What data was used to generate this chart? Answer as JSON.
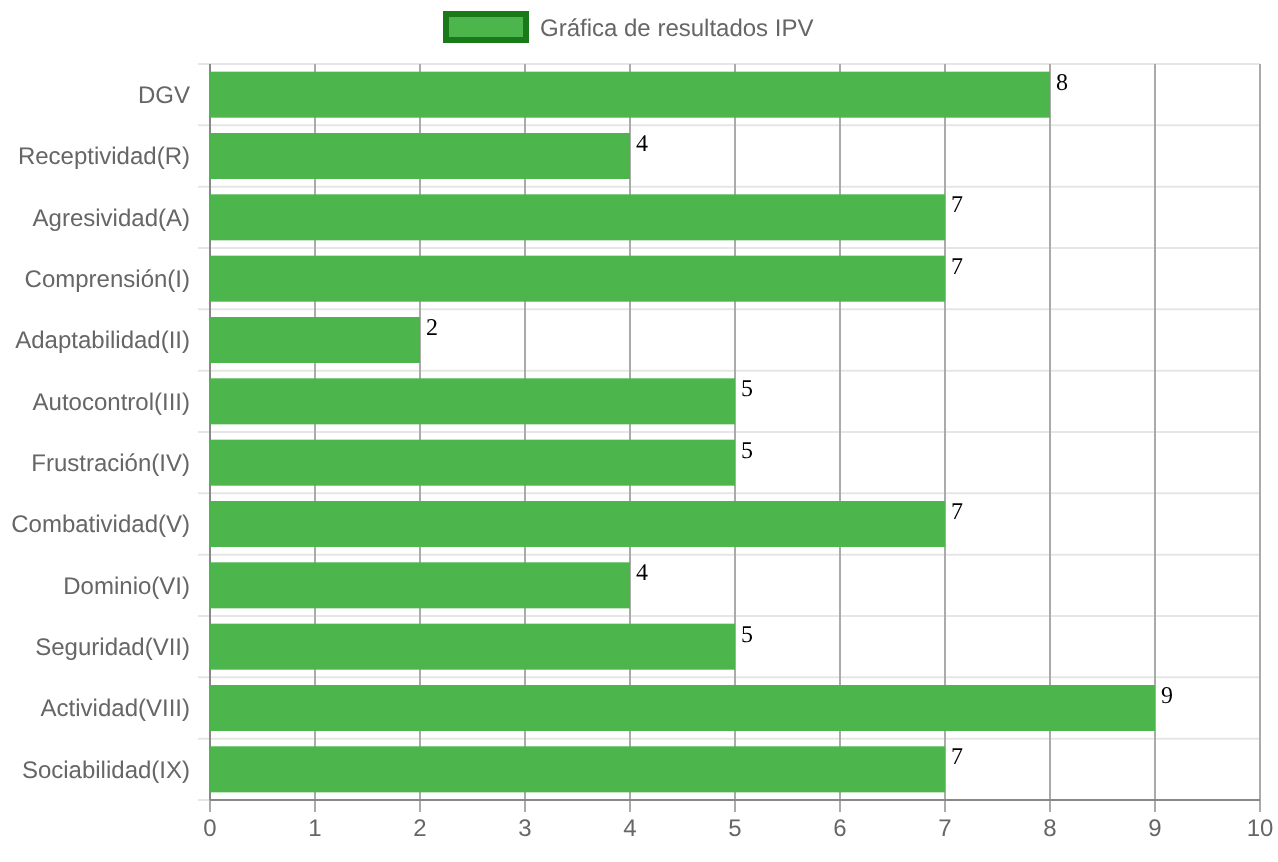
{
  "chart_data": {
    "type": "bar",
    "orientation": "horizontal",
    "categories": [
      "DGV",
      "Receptividad(R)",
      "Agresividad(A)",
      "Comprensión(I)",
      "Adaptabilidad(II)",
      "Autocontrol(III)",
      "Frustración(IV)",
      "Combatividad(V)",
      "Dominio(VI)",
      "Seguridad(VII)",
      "Actividad(VIII)",
      "Sociabilidad(IX)"
    ],
    "series": [
      {
        "name": "Gráfica de resultados IPV",
        "color": "#4cb54c",
        "values": [
          8,
          4,
          7,
          7,
          2,
          5,
          5,
          7,
          4,
          5,
          9,
          7
        ]
      }
    ],
    "xlim": [
      0,
      10
    ],
    "xticks": [
      0,
      1,
      2,
      3,
      4,
      5,
      6,
      7,
      8,
      9,
      10
    ],
    "grid": true,
    "legend": "top",
    "data_labels": true
  }
}
